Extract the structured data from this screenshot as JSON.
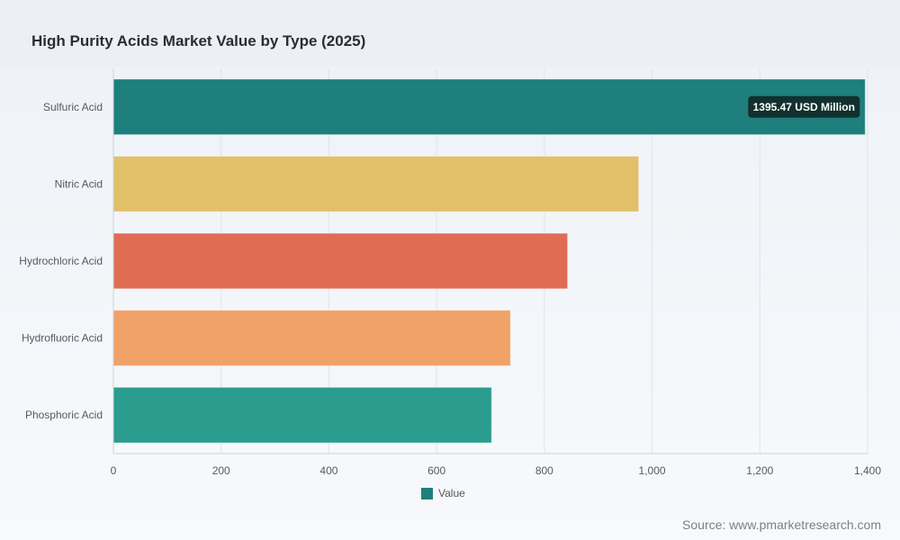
{
  "chart_data": {
    "type": "bar",
    "orientation": "horizontal",
    "title": "High Purity Acids Market Value by Type (2025)",
    "categories": [
      "Sulfuric Acid",
      "Nitric Acid",
      "Hydrochloric Acid",
      "Hydrofluoric Acid",
      "Phosphoric Acid"
    ],
    "series": [
      {
        "name": "Value",
        "values": [
          1395.47,
          975,
          843,
          737,
          702
        ]
      }
    ],
    "bar_colors": [
      "#1f7f7c",
      "#e2c06a",
      "#e06c54",
      "#f0a268",
      "#2a9d8f"
    ],
    "xlim": [
      0,
      1400
    ],
    "x_ticks": [
      "0",
      "200",
      "400",
      "600",
      "800",
      "1,000",
      "1,200",
      "1,400"
    ],
    "grid": true,
    "legend_position": "bottom-center",
    "tooltip": {
      "text": "1395.47 USD Million",
      "category": "Sulfuric Acid"
    }
  },
  "legend": {
    "label": "Value",
    "color": "#1f7f7c"
  },
  "source": "Source: www.pmarketresearch.com"
}
